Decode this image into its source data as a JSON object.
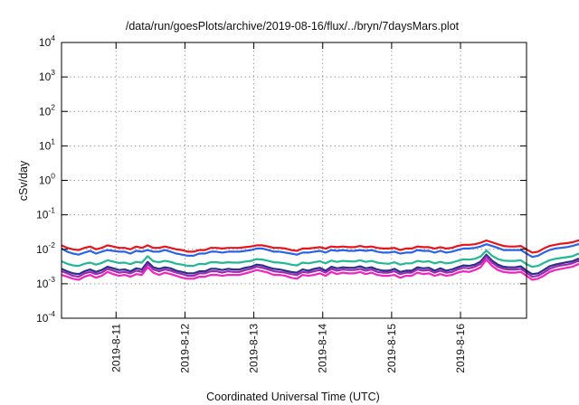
{
  "chart_data": {
    "type": "line",
    "title": "/data/run/goesPlots/archive/2019-08-16/flux/../bryn/7daysMars.plot",
    "xlabel": "Coordinated Universal Time (UTC)",
    "ylabel": "cSv/day",
    "yscale": "log",
    "ylim": [
      0.0001,
      10000
    ],
    "y_ticks": [
      {
        "base": "10",
        "exp": "-4",
        "value": 0.0001
      },
      {
        "base": "10",
        "exp": "-3",
        "value": 0.001
      },
      {
        "base": "10",
        "exp": "-2",
        "value": 0.01
      },
      {
        "base": "10",
        "exp": "-1",
        "value": 0.1
      },
      {
        "base": "10",
        "exp": "0",
        "value": 1
      },
      {
        "base": "10",
        "exp": "1",
        "value": 10
      },
      {
        "base": "10",
        "exp": "2",
        "value": 100
      },
      {
        "base": "10",
        "exp": "3",
        "value": 1000
      },
      {
        "base": "10",
        "exp": "4",
        "value": 10000
      }
    ],
    "x_ticks": [
      "2019-8-11",
      "2019-8-12",
      "2019-8-13",
      "2019-8-14",
      "2019-8-15",
      "2019-8-16"
    ],
    "x_start": "2019-08-10T05:00",
    "x_end": "2019-08-16T23:00",
    "x_step_hours": 2,
    "grid": "dotted",
    "series": [
      {
        "color": "#e8141c",
        "values": [
          0.013,
          0.011,
          0.01,
          0.0095,
          0.011,
          0.012,
          0.01,
          0.011,
          0.013,
          0.012,
          0.011,
          0.011,
          0.01,
          0.012,
          0.011,
          0.013,
          0.011,
          0.011,
          0.012,
          0.011,
          0.01,
          0.0095,
          0.0085,
          0.0085,
          0.0095,
          0.0095,
          0.011,
          0.011,
          0.0105,
          0.011,
          0.011,
          0.011,
          0.0115,
          0.012,
          0.013,
          0.013,
          0.012,
          0.011,
          0.011,
          0.0105,
          0.0095,
          0.009,
          0.0105,
          0.0105,
          0.011,
          0.0115,
          0.0105,
          0.012,
          0.0115,
          0.012,
          0.0115,
          0.0115,
          0.0125,
          0.0115,
          0.012,
          0.011,
          0.0105,
          0.0105,
          0.011,
          0.0095,
          0.0105,
          0.0105,
          0.012,
          0.0115,
          0.0115,
          0.0105,
          0.0115,
          0.0105,
          0.011,
          0.0125,
          0.0135,
          0.0135,
          0.014,
          0.0155,
          0.018,
          0.016,
          0.014,
          0.0125,
          0.012,
          0.012,
          0.0125,
          0.01,
          0.008,
          0.0085,
          0.0105,
          0.0125,
          0.0135,
          0.0145,
          0.015,
          0.016,
          0.018,
          0.0175,
          0.02,
          0.02,
          0.016,
          0.0135,
          0.0115,
          0.0105,
          0.014,
          0.0165,
          0.0155,
          0.014,
          0.0125,
          0.0135,
          0.015,
          0.0125,
          0.0115,
          0.0145,
          0.0155,
          0.014,
          0.012,
          0.0145,
          0.0165,
          0.0185,
          0.018,
          0.0175,
          0.0175,
          0.0175,
          0.017,
          0.0165,
          0.016,
          0.016,
          0.014,
          0.015,
          0.0175,
          0.016,
          0.0155,
          0.016,
          0.0185,
          0.0175,
          0.0155,
          0.0175,
          0.016,
          0.0155,
          0.0195,
          0.0185,
          0.02
        ]
      },
      {
        "color": "#2a63e8",
        "values": [
          0.0105,
          0.0085,
          0.0075,
          0.007,
          0.008,
          0.009,
          0.0075,
          0.0085,
          0.0095,
          0.009,
          0.0085,
          0.0085,
          0.0075,
          0.009,
          0.0085,
          0.0095,
          0.0085,
          0.0085,
          0.0095,
          0.0085,
          0.0075,
          0.007,
          0.0065,
          0.0065,
          0.0075,
          0.0075,
          0.0085,
          0.0085,
          0.008,
          0.0085,
          0.0085,
          0.0085,
          0.009,
          0.0095,
          0.0105,
          0.0105,
          0.0095,
          0.0085,
          0.0085,
          0.008,
          0.0075,
          0.007,
          0.008,
          0.008,
          0.0085,
          0.009,
          0.008,
          0.0095,
          0.009,
          0.0095,
          0.009,
          0.009,
          0.0095,
          0.009,
          0.0095,
          0.0085,
          0.008,
          0.008,
          0.0085,
          0.0075,
          0.008,
          0.008,
          0.0095,
          0.009,
          0.009,
          0.008,
          0.009,
          0.008,
          0.0085,
          0.0095,
          0.0105,
          0.0105,
          0.011,
          0.012,
          0.014,
          0.0125,
          0.011,
          0.0095,
          0.0095,
          0.0095,
          0.0095,
          0.0075,
          0.006,
          0.0065,
          0.008,
          0.0095,
          0.0105,
          0.011,
          0.0115,
          0.0125,
          0.014,
          0.0135,
          0.0155,
          0.0155,
          0.0125,
          0.0105,
          0.009,
          0.008,
          0.011,
          0.013,
          0.012,
          0.011,
          0.0095,
          0.0105,
          0.0115,
          0.0095,
          0.0085,
          0.011,
          0.012,
          0.0105,
          0.009,
          0.011,
          0.013,
          0.0145,
          0.014,
          0.0135,
          0.0135,
          0.0135,
          0.013,
          0.0125,
          0.0125,
          0.0125,
          0.011,
          0.0115,
          0.0135,
          0.0125,
          0.012,
          0.0125,
          0.0145,
          0.0135,
          0.012,
          0.0135,
          0.0125,
          0.012,
          0.015,
          0.0145,
          0.0155
        ]
      },
      {
        "color": "#22b894",
        "values": [
          0.0045,
          0.0038,
          0.0034,
          0.0033,
          0.0038,
          0.0041,
          0.0036,
          0.004,
          0.0048,
          0.0044,
          0.004,
          0.0041,
          0.0037,
          0.0043,
          0.0041,
          0.0063,
          0.0045,
          0.0042,
          0.0046,
          0.0043,
          0.0038,
          0.0036,
          0.0033,
          0.0033,
          0.0038,
          0.0037,
          0.0042,
          0.0042,
          0.004,
          0.0042,
          0.0041,
          0.0041,
          0.0044,
          0.0046,
          0.0052,
          0.005,
          0.0046,
          0.0042,
          0.0041,
          0.0039,
          0.0036,
          0.0034,
          0.0041,
          0.0039,
          0.0042,
          0.0045,
          0.0039,
          0.0047,
          0.0043,
          0.0046,
          0.0045,
          0.0044,
          0.0048,
          0.0043,
          0.0046,
          0.0041,
          0.0039,
          0.0038,
          0.0042,
          0.0036,
          0.0039,
          0.0039,
          0.0046,
          0.0043,
          0.0045,
          0.0039,
          0.0043,
          0.0039,
          0.0041,
          0.0046,
          0.0051,
          0.005,
          0.0053,
          0.0062,
          0.0092,
          0.0065,
          0.0052,
          0.0047,
          0.0046,
          0.0046,
          0.0048,
          0.0037,
          0.0031,
          0.0033,
          0.004,
          0.0048,
          0.0053,
          0.0056,
          0.0059,
          0.0063,
          0.0074,
          0.0069,
          0.0078,
          0.0078,
          0.0063,
          0.0052,
          0.0045,
          0.0041,
          0.0055,
          0.0066,
          0.006,
          0.0055,
          0.0048,
          0.0052,
          0.0058,
          0.0048,
          0.0043,
          0.0055,
          0.006,
          0.0053,
          0.0046,
          0.0056,
          0.0065,
          0.0072,
          0.007,
          0.0068,
          0.0068,
          0.0068,
          0.0066,
          0.0063,
          0.0062,
          0.0062,
          0.0055,
          0.0058,
          0.0068,
          0.0062,
          0.006,
          0.0063,
          0.0073,
          0.0068,
          0.006,
          0.0068,
          0.0063,
          0.006,
          0.0075,
          0.0073,
          0.0095
        ]
      },
      {
        "color": "#2b2f8c",
        "values": [
          0.0027,
          0.0023,
          0.002,
          0.0019,
          0.0023,
          0.0026,
          0.0022,
          0.0025,
          0.0031,
          0.0028,
          0.0025,
          0.0026,
          0.0023,
          0.0028,
          0.0026,
          0.0043,
          0.003,
          0.0027,
          0.003,
          0.0028,
          0.0024,
          0.0022,
          0.002,
          0.002,
          0.0023,
          0.0023,
          0.0027,
          0.0027,
          0.0025,
          0.0027,
          0.0026,
          0.0026,
          0.0029,
          0.0031,
          0.0036,
          0.0034,
          0.003,
          0.0027,
          0.0026,
          0.0024,
          0.0022,
          0.0021,
          0.0026,
          0.0024,
          0.0027,
          0.0029,
          0.0024,
          0.0031,
          0.0028,
          0.003,
          0.0029,
          0.0029,
          0.0032,
          0.0028,
          0.003,
          0.0026,
          0.0024,
          0.0024,
          0.0027,
          0.0022,
          0.0024,
          0.0024,
          0.003,
          0.0028,
          0.0029,
          0.0024,
          0.0028,
          0.0024,
          0.0026,
          0.003,
          0.0034,
          0.0033,
          0.0036,
          0.0044,
          0.007,
          0.0047,
          0.0036,
          0.0031,
          0.003,
          0.003,
          0.0032,
          0.0024,
          0.0019,
          0.002,
          0.0025,
          0.0032,
          0.0036,
          0.0039,
          0.0042,
          0.0045,
          0.0053,
          0.0049,
          0.0056,
          0.0056,
          0.0044,
          0.0036,
          0.003,
          0.0027,
          0.0038,
          0.0047,
          0.0042,
          0.0038,
          0.0033,
          0.0036,
          0.0041,
          0.0033,
          0.0029,
          0.0038,
          0.0042,
          0.0037,
          0.0031,
          0.0039,
          0.0046,
          0.0051,
          0.005,
          0.0048,
          0.0048,
          0.0048,
          0.0047,
          0.0045,
          0.0044,
          0.0044,
          0.0038,
          0.0041,
          0.0048,
          0.0044,
          0.0042,
          0.0045,
          0.0052,
          0.0048,
          0.0042,
          0.0048,
          0.0045,
          0.0042,
          0.0054,
          0.0052,
          0.0068
        ]
      },
      {
        "color": "#9c2ab0",
        "values": [
          0.0023,
          0.002,
          0.0017,
          0.0016,
          0.002,
          0.0022,
          0.0019,
          0.0021,
          0.0027,
          0.0024,
          0.0021,
          0.0022,
          0.002,
          0.0024,
          0.0022,
          0.0037,
          0.0026,
          0.0023,
          0.0026,
          0.0024,
          0.0021,
          0.0019,
          0.0017,
          0.0017,
          0.002,
          0.002,
          0.0023,
          0.0023,
          0.0021,
          0.0023,
          0.0022,
          0.0022,
          0.0025,
          0.0027,
          0.0031,
          0.0029,
          0.0026,
          0.0023,
          0.0022,
          0.0021,
          0.0019,
          0.0018,
          0.0022,
          0.0021,
          0.0023,
          0.0025,
          0.0021,
          0.0027,
          0.0024,
          0.0026,
          0.0025,
          0.0025,
          0.0027,
          0.0024,
          0.0026,
          0.0022,
          0.0021,
          0.0021,
          0.0023,
          0.0019,
          0.0021,
          0.0021,
          0.0026,
          0.0024,
          0.0025,
          0.0021,
          0.0024,
          0.0021,
          0.0022,
          0.0026,
          0.0029,
          0.0028,
          0.0031,
          0.0038,
          0.0062,
          0.0041,
          0.0031,
          0.0027,
          0.0026,
          0.0026,
          0.0027,
          0.0021,
          0.0016,
          0.0017,
          0.0021,
          0.0027,
          0.0031,
          0.0034,
          0.0036,
          0.0039,
          0.0046,
          0.0042,
          0.0048,
          0.0048,
          0.0038,
          0.0031,
          0.0026,
          0.0023,
          0.0033,
          0.004,
          0.0036,
          0.0033,
          0.0028,
          0.0031,
          0.0035,
          0.0028,
          0.0025,
          0.0033,
          0.0036,
          0.0032,
          0.0027,
          0.0034,
          0.004,
          0.0044,
          0.0043,
          0.0041,
          0.0041,
          0.0041,
          0.004,
          0.0039,
          0.0038,
          0.0038,
          0.0033,
          0.0035,
          0.0041,
          0.0038,
          0.0036,
          0.0039,
          0.0045,
          0.0041,
          0.0036,
          0.0041,
          0.0039,
          0.0036,
          0.0046,
          0.0045,
          0.0059
        ]
      },
      {
        "color": "#f024c0",
        "values": [
          0.0018,
          0.0016,
          0.0014,
          0.0013,
          0.0016,
          0.0018,
          0.0015,
          0.0017,
          0.0022,
          0.0019,
          0.0017,
          0.0018,
          0.0016,
          0.0019,
          0.0018,
          0.003,
          0.0021,
          0.0018,
          0.0021,
          0.0019,
          0.0017,
          0.0015,
          0.0014,
          0.0014,
          0.0016,
          0.0016,
          0.0018,
          0.0018,
          0.0017,
          0.0018,
          0.0018,
          0.0018,
          0.002,
          0.0022,
          0.0025,
          0.0023,
          0.0021,
          0.0018,
          0.0018,
          0.0017,
          0.0015,
          0.0014,
          0.0018,
          0.0017,
          0.0018,
          0.002,
          0.0017,
          0.0022,
          0.0019,
          0.0021,
          0.002,
          0.002,
          0.0022,
          0.0019,
          0.0021,
          0.0018,
          0.0017,
          0.0017,
          0.0018,
          0.0015,
          0.0017,
          0.0017,
          0.0021,
          0.0019,
          0.002,
          0.0017,
          0.0019,
          0.0017,
          0.0018,
          0.0021,
          0.0023,
          0.0022,
          0.0025,
          0.003,
          0.005,
          0.0033,
          0.0025,
          0.0022,
          0.0021,
          0.0021,
          0.0022,
          0.0017,
          0.0013,
          0.0014,
          0.0017,
          0.0022,
          0.0025,
          0.0027,
          0.0029,
          0.0031,
          0.0037,
          0.0034,
          0.0038,
          0.0038,
          0.003,
          0.0025,
          0.0021,
          0.0018,
          0.0026,
          0.0032,
          0.0029,
          0.0026,
          0.0022,
          0.0025,
          0.0028,
          0.0022,
          0.002,
          0.0026,
          0.0029,
          0.0026,
          0.0022,
          0.0027,
          0.0032,
          0.0035,
          0.0034,
          0.0033,
          0.0033,
          0.0033,
          0.0032,
          0.0031,
          0.003,
          0.003,
          0.0026,
          0.0028,
          0.0033,
          0.003,
          0.0029,
          0.0031,
          0.0036,
          0.0033,
          0.0029,
          0.0033,
          0.0031,
          0.0029,
          0.0037,
          0.0036,
          0.0047
        ]
      }
    ]
  }
}
